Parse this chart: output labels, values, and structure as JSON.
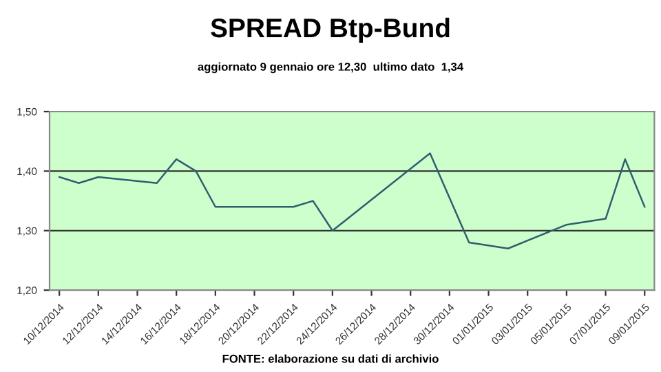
{
  "chart_data": {
    "type": "line",
    "title": "SPREAD Btp-Bund",
    "subtitle": "aggiornato 9 gennaio ore 12,30  ultimo dato  1,34",
    "x": [
      "2014-12-10",
      "2014-12-11",
      "2014-12-12",
      "2014-12-15",
      "2014-12-16",
      "2014-12-17",
      "2014-12-18",
      "2014-12-22",
      "2014-12-23",
      "2014-12-24",
      "2014-12-29",
      "2014-12-31",
      "2015-01-02",
      "2015-01-05",
      "2015-01-07",
      "2015-01-08",
      "2015-01-09"
    ],
    "series": [
      {
        "color": "#2f5f6f",
        "values": [
          1.39,
          1.38,
          1.39,
          1.38,
          1.42,
          1.4,
          1.34,
          1.34,
          1.35,
          1.3,
          1.43,
          1.28,
          1.27,
          1.31,
          1.32,
          1.42,
          1.34
        ]
      }
    ],
    "xlim": [
      "2014-12-09T12:00",
      "2015-01-09T12:00"
    ],
    "xticks": [
      {
        "value": "2014-12-10",
        "label": "10/12/2014"
      },
      {
        "value": "2014-12-12",
        "label": "12/12/2014"
      },
      {
        "value": "2014-12-14",
        "label": "14/12/2014"
      },
      {
        "value": "2014-12-16",
        "label": "16/12/2014"
      },
      {
        "value": "2014-12-18",
        "label": "18/12/2014"
      },
      {
        "value": "2014-12-20",
        "label": "20/12/2014"
      },
      {
        "value": "2014-12-22",
        "label": "22/12/2014"
      },
      {
        "value": "2014-12-24",
        "label": "24/12/2014"
      },
      {
        "value": "2014-12-26",
        "label": "26/12/2014"
      },
      {
        "value": "2014-12-28",
        "label": "28/12/2014"
      },
      {
        "value": "2014-12-30",
        "label": "30/12/2014"
      },
      {
        "value": "2015-01-01",
        "label": "01/01/2015"
      },
      {
        "value": "2015-01-03",
        "label": "03/01/2015"
      },
      {
        "value": "2015-01-05",
        "label": "05/01/2015"
      },
      {
        "value": "2015-01-07",
        "label": "07/01/2015"
      },
      {
        "value": "2015-01-09",
        "label": "09/01/2015"
      }
    ],
    "ylim": [
      1.2,
      1.5
    ],
    "yticks": [
      {
        "value": 1.2,
        "label": "1,20"
      },
      {
        "value": 1.3,
        "label": "1,30"
      },
      {
        "value": 1.4,
        "label": "1,40"
      },
      {
        "value": 1.5,
        "label": "1,50"
      }
    ],
    "grid": "y",
    "legend": false,
    "marker": "none",
    "line_style": "solid",
    "annotations": [
      "FONTE: elaborazione su dati di archivio"
    ]
  }
}
